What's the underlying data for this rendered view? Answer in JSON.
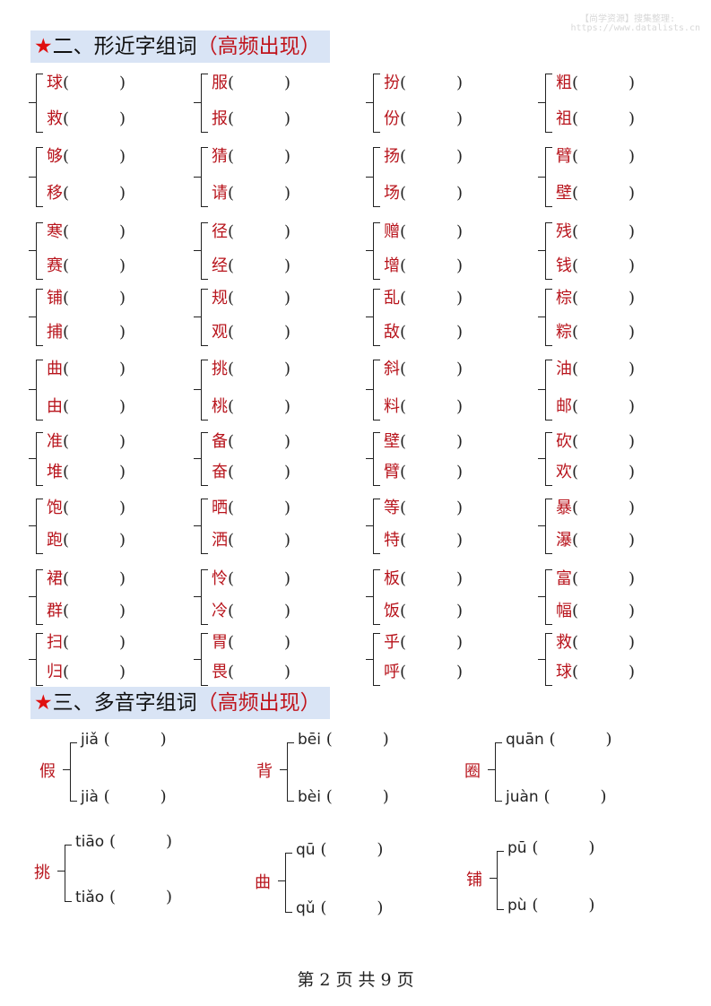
{
  "watermark": {
    "line1": "【尚学资源】搜集整理:",
    "line2": "https://www.datalists.cn"
  },
  "section2": {
    "star": "★",
    "title": "二、形近字组词",
    "highlight": "（高频出现）"
  },
  "pairs": [
    [
      "球",
      "救"
    ],
    [
      "服",
      "报"
    ],
    [
      "扮",
      "份"
    ],
    [
      "粗",
      "祖"
    ],
    [
      "够",
      "移"
    ],
    [
      "猜",
      "请"
    ],
    [
      "扬",
      "场"
    ],
    [
      "臂",
      "壁"
    ],
    [
      "寒",
      "赛"
    ],
    [
      "径",
      "经"
    ],
    [
      "赠",
      "增"
    ],
    [
      "残",
      "钱"
    ],
    [
      "铺",
      "捕"
    ],
    [
      "规",
      "观"
    ],
    [
      "乱",
      "敌"
    ],
    [
      "棕",
      "粽"
    ],
    [
      "曲",
      "由"
    ],
    [
      "挑",
      "桃"
    ],
    [
      "斜",
      "料"
    ],
    [
      "油",
      "邮"
    ],
    [
      "准",
      "堆"
    ],
    [
      "备",
      "奋"
    ],
    [
      "壁",
      "臂"
    ],
    [
      "砍",
      "欢"
    ],
    [
      "饱",
      "跑"
    ],
    [
      "晒",
      "洒"
    ],
    [
      "等",
      "特"
    ],
    [
      "暴",
      "瀑"
    ],
    [
      "裙",
      "群"
    ],
    [
      "怜",
      "冷"
    ],
    [
      "板",
      "饭"
    ],
    [
      "富",
      "幅"
    ],
    [
      "扫",
      "归"
    ],
    [
      "胃",
      "畏"
    ],
    [
      "乎",
      "呼"
    ],
    [
      "救",
      "球"
    ]
  ],
  "section3": {
    "star": "★",
    "title": "三、多音字组词",
    "highlight": "（高频出现）"
  },
  "polyphones": [
    {
      "char": "假",
      "readings": [
        "jiǎ",
        "jià"
      ]
    },
    {
      "char": "背",
      "readings": [
        "bēi",
        "bèi"
      ]
    },
    {
      "char": "圈",
      "readings": [
        "quān",
        "juàn"
      ]
    },
    {
      "char": "挑",
      "readings": [
        "tiāo",
        "tiǎo"
      ]
    },
    {
      "char": "曲",
      "readings": [
        "qū",
        "qǔ"
      ]
    },
    {
      "char": "铺",
      "readings": [
        "pū",
        "pù"
      ]
    }
  ],
  "paren_open": "(",
  "paren_close": ")",
  "footer": "第 2 页 共 9 页"
}
